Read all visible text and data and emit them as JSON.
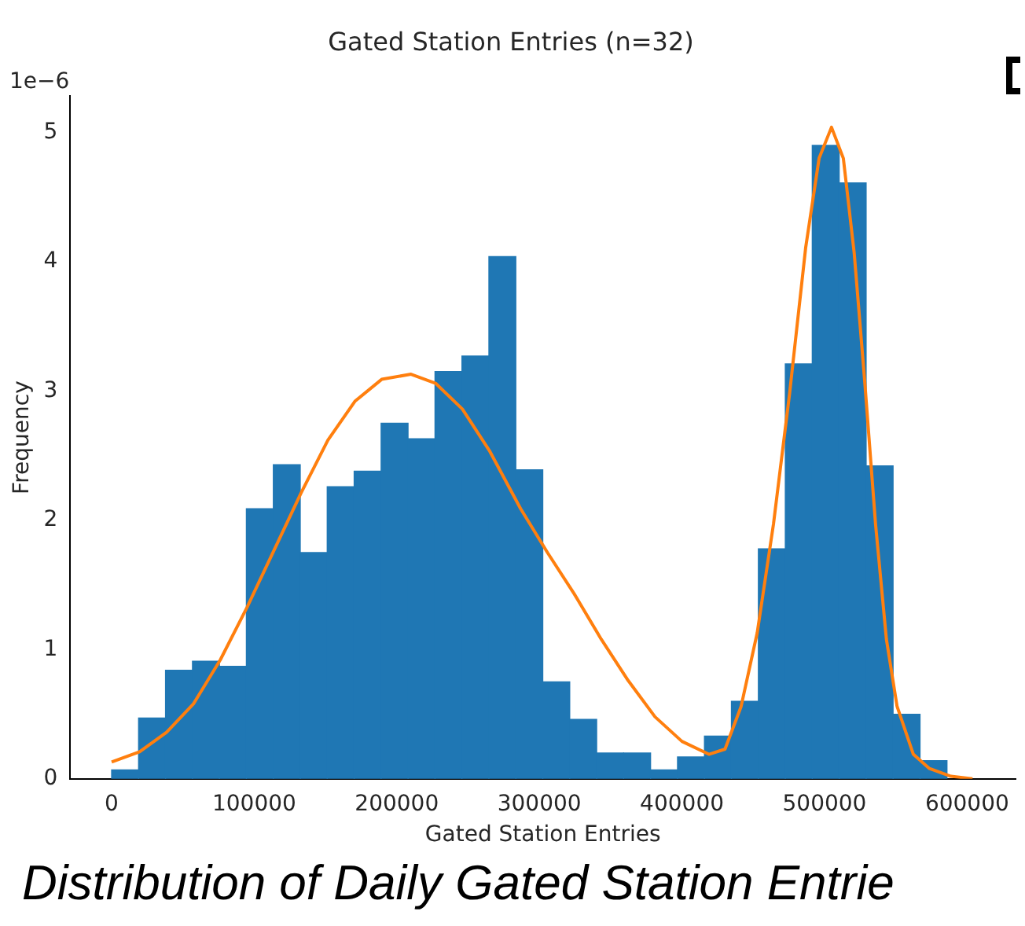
{
  "chart_data": {
    "type": "histogram",
    "title": "Gated Station Entries (n=32)",
    "xlabel": "Gated Station Entries",
    "ylabel": "Frequency",
    "bins": [
      0,
      18900,
      37800,
      56700,
      75600,
      94500,
      113400,
      132300,
      151200,
      170100,
      189000,
      207900,
      226800,
      245700,
      264600,
      283500,
      302400,
      321300,
      340200,
      359100,
      378000,
      396900,
      415800,
      434700,
      453600,
      472500,
      491400,
      510300,
      529200,
      548100,
      567000,
      585900
    ],
    "values": [
      0.07,
      0.47,
      0.84,
      0.91,
      0.87,
      2.09,
      2.43,
      1.75,
      2.26,
      2.38,
      2.75,
      2.63,
      3.15,
      3.27,
      4.04,
      2.39,
      0.75,
      0.46,
      0.2,
      0.2,
      0.07,
      0.17,
      0.33,
      0.6,
      1.78,
      3.21,
      4.9,
      4.61,
      2.42,
      0.5,
      0.14
    ],
    "color": "#1f77b4",
    "series": [
      {
        "type": "line",
        "color": "#ff7f0e",
        "x": [
          0,
          19600,
          38500,
          57400,
          76200,
          95100,
          114000,
          132800,
          151700,
          170600,
          189400,
          210000,
          227200,
          246000,
          264900,
          286800,
          305700,
          324500,
          343400,
          362300,
          381100,
          400000,
          418900,
          430200,
          441500,
          452800,
          464200,
          475500,
          486800,
          496200,
          504900,
          513200,
          520800,
          528300,
          535800,
          543400,
          550900,
          562300,
          573600,
          588700,
          603800
        ],
        "values": [
          0.13,
          0.21,
          0.36,
          0.58,
          0.92,
          1.33,
          1.77,
          2.21,
          2.62,
          2.92,
          3.09,
          3.13,
          3.06,
          2.86,
          2.54,
          2.09,
          1.75,
          1.43,
          1.08,
          0.76,
          0.48,
          0.29,
          0.19,
          0.23,
          0.56,
          1.13,
          1.97,
          2.98,
          4.11,
          4.8,
          5.04,
          4.8,
          4.07,
          3.06,
          1.97,
          1.08,
          0.56,
          0.19,
          0.08,
          0.02,
          0
        ]
      }
    ],
    "xlim": [
      -29000,
      634000
    ],
    "xticks": [
      0,
      100000,
      200000,
      300000,
      400000,
      500000,
      600000
    ],
    "ylim": [
      0,
      5.28
    ],
    "yticks": [
      0,
      1,
      2,
      3,
      4,
      5
    ],
    "grid": false,
    "legend": false,
    "marker": "none",
    "line_style": "solid",
    "annotations": [
      "1e−6",
      "Distribution of Daily Gated Station Entrie"
    ]
  }
}
